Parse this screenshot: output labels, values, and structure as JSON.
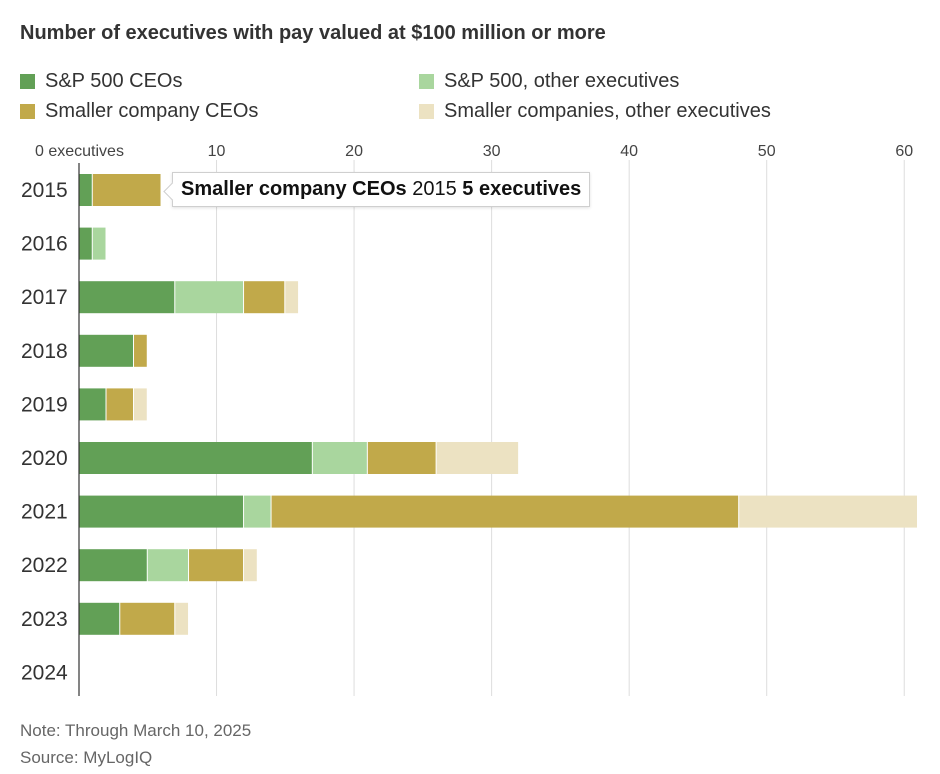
{
  "title": "Number of executives with pay valued at $100 million or more",
  "legend": [
    {
      "label": "S&P 500 CEOs",
      "color": "#62a056"
    },
    {
      "label": "S&P 500, other executives",
      "color": "#a9d69e"
    },
    {
      "label": "Smaller company CEOs",
      "color": "#c1a94a"
    },
    {
      "label": "Smaller companies, other executives",
      "color": "#ece2c2"
    }
  ],
  "tooltip": {
    "series": "Smaller company CEOs",
    "year": "2015",
    "value": "5 executives"
  },
  "note": "Note: Through March 10, 2025",
  "source": "Source: MyLogIQ",
  "chart_data": {
    "type": "bar",
    "orientation": "horizontal",
    "stacked": true,
    "title": "Number of executives with pay valued at $100 million or more",
    "categories": [
      "2015",
      "2016",
      "2017",
      "2018",
      "2019",
      "2020",
      "2021",
      "2022",
      "2023",
      "2024"
    ],
    "series": [
      {
        "name": "S&P 500 CEOs",
        "color": "#62a056",
        "values": [
          1,
          1,
          7,
          4,
          2,
          17,
          12,
          5,
          3,
          0
        ]
      },
      {
        "name": "S&P 500, other executives",
        "color": "#a9d69e",
        "values": [
          0,
          1,
          5,
          0,
          0,
          4,
          2,
          3,
          0,
          0
        ]
      },
      {
        "name": "Smaller company CEOs",
        "color": "#c1a94a",
        "values": [
          5,
          0,
          3,
          1,
          2,
          5,
          34,
          4,
          4,
          0
        ]
      },
      {
        "name": "Smaller companies, other executives",
        "color": "#ece2c2",
        "values": [
          0,
          0,
          1,
          0,
          1,
          6,
          13,
          1,
          1,
          0
        ]
      }
    ],
    "xlim": [
      0,
      61
    ],
    "xticks": [
      0,
      10,
      20,
      30,
      40,
      50,
      60
    ],
    "xtick_labels": [
      "0 executives",
      "10",
      "20",
      "30",
      "40",
      "50",
      "60"
    ],
    "grid": true,
    "legend_position": "top"
  }
}
